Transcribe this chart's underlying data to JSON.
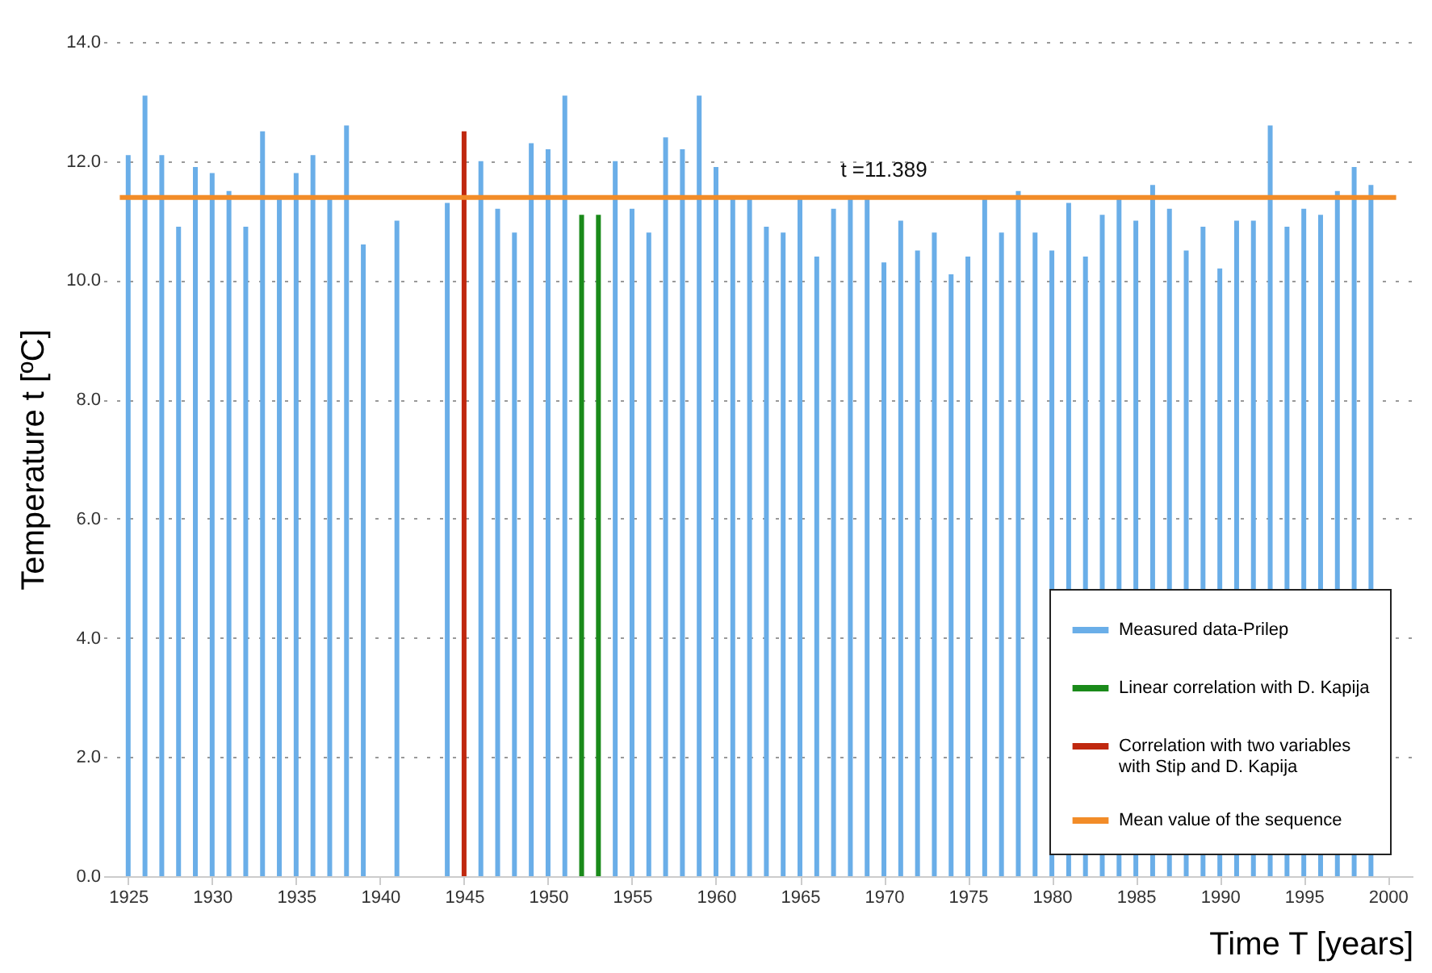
{
  "chart_data": {
    "type": "bar",
    "xlabel": "Time  T [years]",
    "ylabel": "Temperature t  [ºC]",
    "xlim": [
      1924,
      2001
    ],
    "xticks": [
      1925,
      1930,
      1935,
      1940,
      1945,
      1950,
      1955,
      1960,
      1965,
      1970,
      1975,
      1980,
      1985,
      1990,
      1995,
      2000
    ],
    "ylim": [
      0,
      14
    ],
    "yticks": [
      {
        "value": 0,
        "label": "0.0"
      },
      {
        "value": 2,
        "label": "2.0"
      },
      {
        "value": 4,
        "label": "4.0"
      },
      {
        "value": 6,
        "label": "6.0"
      },
      {
        "value": 8,
        "label": "8.0"
      },
      {
        "value": 10,
        "label": "10.0"
      },
      {
        "value": 12,
        "label": "12.0"
      },
      {
        "value": 14,
        "label": "14.0"
      }
    ],
    "grid": "y",
    "legend": "bottom right",
    "series": [
      {
        "name": "Measured data-Prilep",
        "color": "#6aaee8",
        "x": [
          1925,
          1926,
          1927,
          1928,
          1929,
          1930,
          1931,
          1932,
          1933,
          1934,
          1935,
          1936,
          1937,
          1938,
          1939,
          1941,
          1944,
          1946,
          1947,
          1948,
          1949,
          1950,
          1951,
          1954,
          1955,
          1956,
          1957,
          1958,
          1959,
          1960,
          1961,
          1962,
          1963,
          1964,
          1965,
          1966,
          1967,
          1968,
          1969,
          1970,
          1971,
          1972,
          1973,
          1974,
          1975,
          1976,
          1977,
          1978,
          1979,
          1980,
          1981,
          1982,
          1983,
          1984,
          1985,
          1986,
          1987,
          1988,
          1989,
          1990,
          1991,
          1992,
          1993,
          1994,
          1995,
          1996,
          1997,
          1998,
          1999
        ],
        "values": [
          12.1,
          13.1,
          12.1,
          10.9,
          11.9,
          11.8,
          11.5,
          10.9,
          12.5,
          11.4,
          11.8,
          12.1,
          11.4,
          12.6,
          10.6,
          11.0,
          11.3,
          12.0,
          11.2,
          10.8,
          12.3,
          12.2,
          13.1,
          12.0,
          11.2,
          10.8,
          12.4,
          12.2,
          13.1,
          11.9,
          11.4,
          11.4,
          10.9,
          10.8,
          11.4,
          10.4,
          11.2,
          11.4,
          11.4,
          10.3,
          11.0,
          10.5,
          10.8,
          10.1,
          10.4,
          11.4,
          10.8,
          11.5,
          10.8,
          10.5,
          11.3,
          10.4,
          11.1,
          11.4,
          11.0,
          11.6,
          11.2,
          10.5,
          10.9,
          10.2,
          11.0,
          11.0,
          12.6,
          10.9,
          11.2,
          11.1,
          11.5,
          11.9,
          11.6
        ]
      },
      {
        "name": "Linear correlation with D. Kapija",
        "color": "#1a8a1a",
        "x": [
          1952,
          1953
        ],
        "values": [
          11.1,
          11.1
        ]
      },
      {
        "name": "Correlation with two variables\nwith Stip and D. Kapija",
        "color": "#c0280f",
        "x": [
          1945
        ],
        "values": [
          12.5
        ]
      },
      {
        "name": "Mean value of the sequence",
        "type": "line",
        "color": "#f28c28",
        "x": [
          1924.5,
          2000.5
        ],
        "values": [
          11.39,
          11.39
        ]
      }
    ],
    "annotations": [
      {
        "text": "t =11.389",
        "x": 1970,
        "y": 11.39
      }
    ]
  }
}
